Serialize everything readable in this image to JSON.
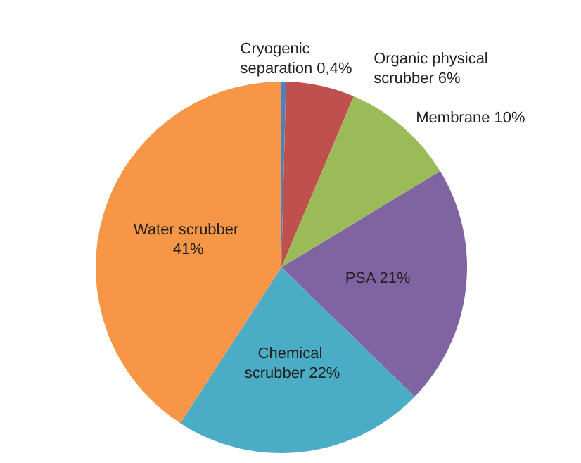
{
  "chart_data": {
    "type": "pie",
    "categories": [
      "Cryogenic separation",
      "Organic physical scrubber",
      "Membrane",
      "PSA",
      "Chemical scrubber",
      "Water scrubber"
    ],
    "values": [
      0.4,
      6,
      10,
      21,
      22,
      41
    ],
    "value_labels": [
      "0,4%",
      "6%",
      "10%",
      "21%",
      "22%",
      "41%"
    ],
    "colors": [
      "#4f81bd",
      "#c0504d",
      "#9bbb59",
      "#8064a2",
      "#4bacc6",
      "#f79646"
    ],
    "legend": false
  }
}
